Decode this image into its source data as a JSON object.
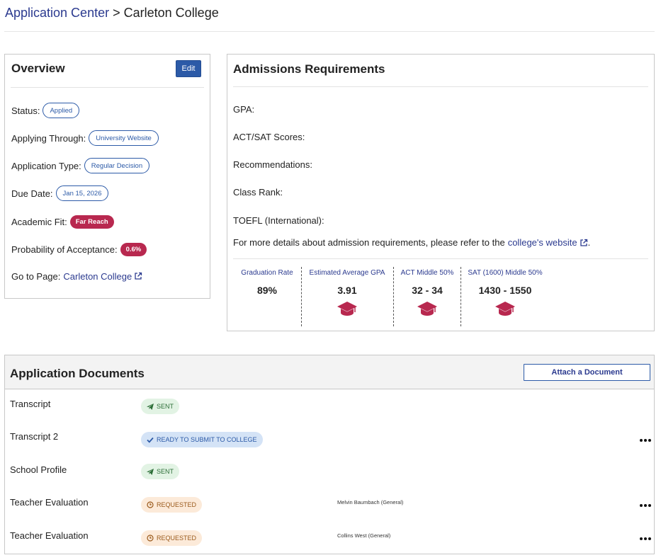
{
  "breadcrumb": {
    "parent": "Application Center",
    "separator": ">",
    "current": "Carleton College"
  },
  "overview": {
    "title": "Overview",
    "edit_label": "Edit",
    "status_label": "Status:",
    "status_value": "Applied",
    "applying_through_label": "Applying Through:",
    "applying_through_value": "University Website",
    "application_type_label": "Application Type:",
    "application_type_value": "Regular Decision",
    "due_date_label": "Due Date:",
    "due_date_value": "Jan 15, 2026",
    "academic_fit_label": "Academic Fit:",
    "academic_fit_value": "Far Reach",
    "probability_label": "Probability of Acceptance:",
    "probability_value": "0.6%",
    "go_to_page_label": "Go to Page:",
    "go_to_page_link": "Carleton College"
  },
  "admissions": {
    "title": "Admissions Requirements",
    "gpa_label": "GPA:",
    "scores_label": "ACT/SAT Scores:",
    "recommendations_label": "Recommendations:",
    "class_rank_label": "Class Rank:",
    "toefl_label": "TOEFL (International):",
    "note_text": "For more details about admission requirements, please refer to the",
    "note_link": "college's website",
    "note_end": ".",
    "stats": [
      {
        "label": "Graduation Rate",
        "value": "89%"
      },
      {
        "label": "Estimated Average GPA",
        "value": "3.91",
        "icon": "graduation-cap-icon"
      },
      {
        "label": "ACT Middle 50%",
        "value": "32 - 34",
        "icon": "graduation-cap-icon"
      },
      {
        "label": "SAT (1600) Middle 50%",
        "value": "1430 - 1550",
        "icon": "graduation-cap-icon"
      }
    ]
  },
  "documents": {
    "title": "Application Documents",
    "attach_label": "Attach a Document",
    "rows": [
      {
        "name": "Transcript",
        "status": "SENT",
        "status_icon": "paper-plane-icon",
        "recipient": ""
      },
      {
        "name": "Transcript 2",
        "status": "READY TO SUBMIT TO COLLEGE",
        "status_icon": "check-icon",
        "recipient": ""
      },
      {
        "name": "School Profile",
        "status": "SENT",
        "status_icon": "paper-plane-icon",
        "recipient": ""
      },
      {
        "name": "Teacher Evaluation",
        "status": "REQUESTED",
        "status_icon": "clock-icon",
        "recipient": "Melvin Baumbach (General)"
      },
      {
        "name": "Teacher Evaluation",
        "status": "REQUESTED",
        "status_icon": "clock-icon",
        "recipient": "Collins West (General)"
      }
    ]
  },
  "colors": {
    "brand_blue": "#2c5aa7",
    "link_blue": "#2b3a8f",
    "alert_red": "#b8284f",
    "sent_green": "#2c6e37",
    "ready_blue": "#2c5aa7",
    "requested_orange": "#9a5a1c"
  }
}
